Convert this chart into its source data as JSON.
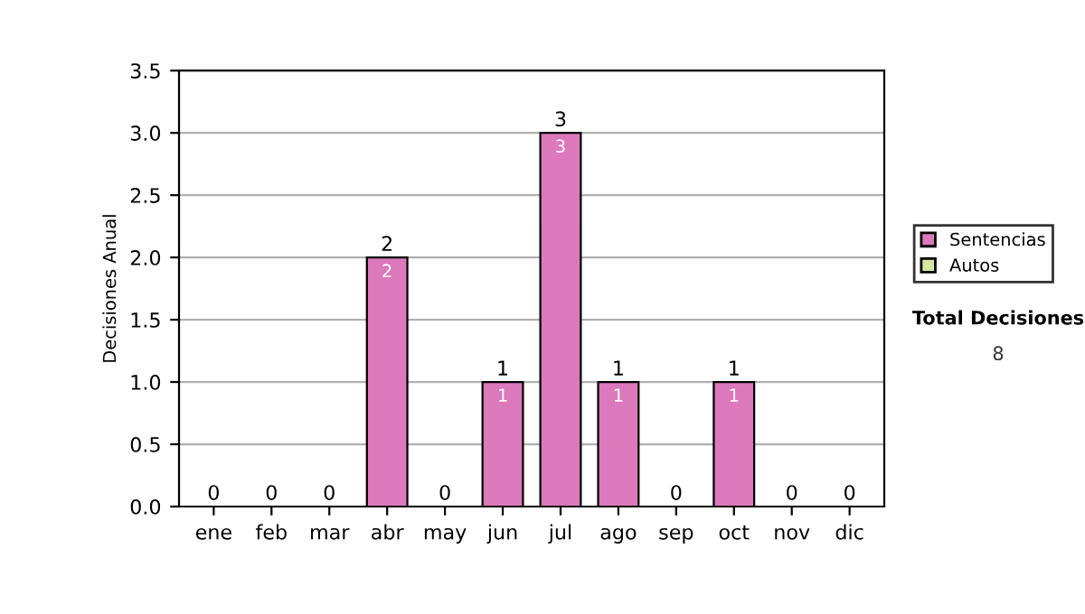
{
  "chart_data": {
    "type": "bar",
    "ylabel": "Decisiones Anual",
    "stacked": true,
    "categories": [
      "ene",
      "feb",
      "mar",
      "abr",
      "may",
      "jun",
      "jul",
      "ago",
      "sep",
      "oct",
      "nov",
      "dic"
    ],
    "series": [
      {
        "name": "Sentencias",
        "color": "#dc78bc",
        "values": [
          0,
          0,
          0,
          2,
          0,
          1,
          3,
          1,
          0,
          1,
          0,
          0
        ],
        "value_labels": [
          null,
          null,
          null,
          "2",
          null,
          "1",
          "3",
          "1",
          null,
          "1",
          null,
          null
        ]
      },
      {
        "name": "Autos",
        "color": "#d4e8a0",
        "values": [
          0,
          0,
          0,
          0,
          0,
          0,
          0,
          0,
          0,
          0,
          0,
          0
        ]
      }
    ],
    "totals": [
      "0",
      "0",
      "0",
      "2",
      "0",
      "1",
      "3",
      "1",
      "0",
      "1",
      "0",
      "0"
    ],
    "ylim": [
      0,
      3.5
    ],
    "yticks": [
      {
        "value": 0,
        "label": "0.0"
      },
      {
        "value": 0.5,
        "label": "0.5"
      },
      {
        "value": 1,
        "label": "1.0"
      },
      {
        "value": 1.5,
        "label": "1.5"
      },
      {
        "value": 2,
        "label": "2.0"
      },
      {
        "value": 2.5,
        "label": "2.5"
      },
      {
        "value": 3,
        "label": "3.0"
      },
      {
        "value": 3.5,
        "label": "3.5"
      }
    ],
    "grid": "y",
    "legend": "right",
    "annotations": [
      "Total Decisiones",
      "8"
    ]
  }
}
